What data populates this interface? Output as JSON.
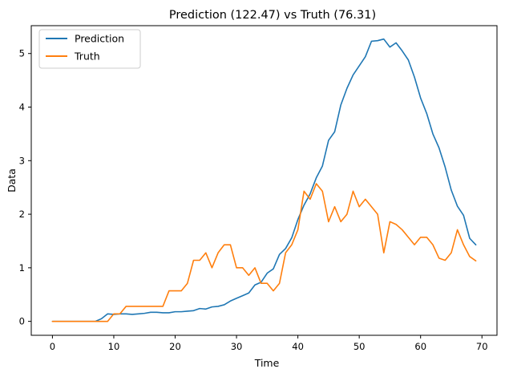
{
  "chart_data": {
    "type": "line",
    "title": "Prediction (122.47) vs Truth (76.31)",
    "xlabel": "Time",
    "ylabel": "Data",
    "xlim": [
      -3.45,
      72.45
    ],
    "ylim": [
      -0.26,
      5.52
    ],
    "x_ticks": [
      0,
      10,
      20,
      30,
      40,
      50,
      60,
      70
    ],
    "y_ticks": [
      0,
      1,
      2,
      3,
      4,
      5
    ],
    "grid": false,
    "legend_position": "upper-left",
    "x": [
      0,
      1,
      2,
      3,
      4,
      5,
      6,
      7,
      8,
      9,
      10,
      11,
      12,
      13,
      14,
      15,
      16,
      17,
      18,
      19,
      20,
      21,
      22,
      23,
      24,
      25,
      26,
      27,
      28,
      29,
      30,
      31,
      32,
      33,
      34,
      35,
      36,
      37,
      38,
      39,
      40,
      41,
      42,
      43,
      44,
      45,
      46,
      47,
      48,
      49,
      50,
      51,
      52,
      53,
      54,
      55,
      56,
      57,
      58,
      59,
      60,
      61,
      62,
      63,
      64,
      65,
      66,
      67,
      68,
      69
    ],
    "series": [
      {
        "name": "Prediction",
        "color": "#1f77b4",
        "values": [
          0,
          0,
          0,
          0,
          0,
          0,
          0,
          0,
          0.05,
          0.14,
          0.13,
          0.14,
          0.14,
          0.13,
          0.14,
          0.15,
          0.17,
          0.17,
          0.16,
          0.16,
          0.18,
          0.18,
          0.19,
          0.2,
          0.24,
          0.23,
          0.27,
          0.28,
          0.31,
          0.38,
          0.43,
          0.48,
          0.53,
          0.68,
          0.73,
          0.9,
          0.98,
          1.25,
          1.36,
          1.56,
          1.9,
          2.17,
          2.38,
          2.68,
          2.9,
          3.38,
          3.54,
          4.04,
          4.35,
          4.6,
          4.77,
          4.94,
          5.23,
          5.24,
          5.27,
          5.12,
          5.2,
          5.05,
          4.88,
          4.56,
          4.17,
          3.88,
          3.5,
          3.24,
          2.88,
          2.45,
          2.15,
          1.98,
          1.55,
          1.43
        ]
      },
      {
        "name": "Truth",
        "color": "#ff7f0e",
        "values": [
          0,
          0,
          0,
          0,
          0,
          0,
          0,
          0,
          0,
          0,
          0.14,
          0.14,
          0.28,
          0.28,
          0.28,
          0.28,
          0.28,
          0.28,
          0.28,
          0.57,
          0.57,
          0.57,
          0.71,
          1.14,
          1.14,
          1.28,
          1.0,
          1.28,
          1.43,
          1.43,
          1.0,
          1.0,
          0.86,
          1.0,
          0.71,
          0.71,
          0.57,
          0.71,
          1.28,
          1.43,
          1.71,
          2.43,
          2.28,
          2.57,
          2.43,
          1.86,
          2.14,
          1.86,
          2.0,
          2.43,
          2.14,
          2.28,
          2.14,
          2.0,
          1.28,
          1.86,
          1.81,
          1.71,
          1.57,
          1.43,
          1.57,
          1.57,
          1.43,
          1.18,
          1.14,
          1.28,
          1.71,
          1.43,
          1.21,
          1.13
        ]
      }
    ]
  }
}
